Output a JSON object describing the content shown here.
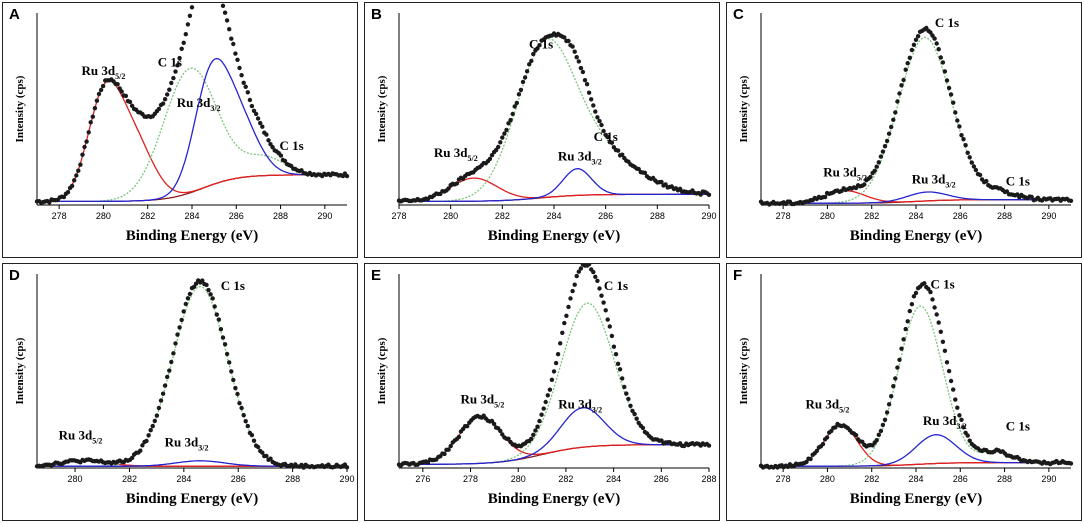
{
  "figure": {
    "colors": {
      "points": "#1a1a1a",
      "ru52": "#e02020",
      "ru32": "#2424d0",
      "c1s": "#7cc47c",
      "background": "#8b1a1a"
    }
  },
  "chart_data": [
    {
      "panel": "A",
      "type": "line",
      "xlabel": "Binding Energy (eV)",
      "ylabel": "Intensity (cps)",
      "xlim": [
        277,
        291
      ],
      "ylim": [
        0,
        1.08
      ],
      "xticks": [
        "278",
        "280",
        "282",
        "284",
        "286",
        "288",
        "290"
      ],
      "series": [
        {
          "name": "Ru 3d5/2",
          "role": "ru52",
          "centers": [
            280.0,
            281.3
          ],
          "heights": [
            0.53,
            0.35
          ],
          "widths": [
            0.75,
            0.9
          ]
        },
        {
          "name": "C 1s",
          "role": "c1s",
          "centers": [
            283.9,
            287.3
          ],
          "heights": [
            0.7,
            0.1
          ],
          "widths": [
            1.2,
            0.9
          ]
        },
        {
          "name": "Ru 3d3/2",
          "role": "ru32",
          "centers": [
            284.8,
            286.0
          ],
          "heights": [
            0.53,
            0.35
          ],
          "widths": [
            0.75,
            0.9
          ]
        }
      ],
      "background_curve": {
        "from": 0.02,
        "to": 0.17,
        "center": 284.5,
        "steepness": 0.8
      },
      "annotations": [
        {
          "text": "Ru 3d",
          "sub": "5/2",
          "x": 280.0,
          "y": 0.73
        },
        {
          "text": "C 1s",
          "x": 283.0,
          "y": 0.78
        },
        {
          "text": "Ru 3d",
          "sub": "3/2",
          "x": 284.3,
          "y": 0.55
        },
        {
          "text": "C 1s",
          "x": 288.5,
          "y": 0.31
        }
      ]
    },
    {
      "panel": "B",
      "type": "line",
      "xlabel": "Binding Energy (eV)",
      "ylabel": "Intensity (cps)",
      "xlim": [
        278,
        290
      ],
      "ylim": [
        0,
        1.08
      ],
      "xticks": [
        "278",
        "280",
        "282",
        "284",
        "286",
        "288",
        "290"
      ],
      "series": [
        {
          "name": "Ru 3d5/2",
          "role": "ru52",
          "centers": [
            280.9
          ],
          "heights": [
            0.13
          ],
          "widths": [
            0.9
          ]
        },
        {
          "name": "C 1s",
          "role": "c1s",
          "centers": [
            283.6,
            285.4
          ],
          "heights": [
            0.74,
            0.27
          ],
          "widths": [
            1.1,
            1.6
          ]
        },
        {
          "name": "Ru 3d3/2",
          "role": "ru32",
          "centers": [
            284.9
          ],
          "heights": [
            0.15
          ],
          "widths": [
            0.55
          ]
        }
      ],
      "background_curve": {
        "from": 0.02,
        "to": 0.06,
        "center": 283.5,
        "steepness": 0.8
      },
      "annotations": [
        {
          "text": "Ru 3d",
          "sub": "5/2",
          "x": 280.2,
          "y": 0.27
        },
        {
          "text": "C 1s",
          "x": 283.5,
          "y": 0.88
        },
        {
          "text": "C 1s",
          "x": 286.0,
          "y": 0.36
        },
        {
          "text": "Ru 3d",
          "sub": "3/2",
          "x": 285.0,
          "y": 0.25
        }
      ]
    },
    {
      "panel": "C",
      "type": "line",
      "xlabel": "Binding Energy (eV)",
      "ylabel": "Intensity (cps)",
      "xlim": [
        277,
        291
      ],
      "ylim": [
        0,
        1.08
      ],
      "xticks": [
        "278",
        "280",
        "282",
        "284",
        "286",
        "288",
        "290"
      ],
      "series": [
        {
          "name": "Ru 3d5/2",
          "role": "ru52",
          "centers": [
            280.8
          ],
          "heights": [
            0.07
          ],
          "widths": [
            0.9
          ]
        },
        {
          "name": "C 1s",
          "role": "c1s",
          "centers": [
            284.4,
            287.7
          ],
          "heights": [
            0.92,
            0.04
          ],
          "widths": [
            1.2,
            0.8
          ]
        },
        {
          "name": "Ru 3d3/2",
          "role": "ru32",
          "centers": [
            284.5
          ],
          "heights": [
            0.05
          ],
          "widths": [
            0.9
          ]
        }
      ],
      "background_curve": {
        "from": 0.01,
        "to": 0.03,
        "center": 284.0,
        "steepness": 0.8
      },
      "annotations": [
        {
          "text": "C 1s",
          "x": 285.4,
          "y": 1.0
        },
        {
          "text": "Ru 3d",
          "sub": "5/2",
          "x": 280.8,
          "y": 0.16
        },
        {
          "text": "Ru 3d",
          "sub": "3/2",
          "x": 284.8,
          "y": 0.12
        },
        {
          "text": "C 1s",
          "x": 288.6,
          "y": 0.11
        }
      ]
    },
    {
      "panel": "D",
      "type": "line",
      "xlabel": "Binding Energy (eV)",
      "ylabel": "Intensity (cps)",
      "xlim": [
        278.6,
        290
      ],
      "ylim": [
        0,
        1.08
      ],
      "xticks": [
        "280",
        "282",
        "284",
        "286",
        "288",
        "290"
      ],
      "series": [
        {
          "name": "Ru 3d5/2",
          "role": "ru52",
          "centers": [
            280.3
          ],
          "heights": [
            0.03
          ],
          "widths": [
            0.9
          ]
        },
        {
          "name": "C 1s",
          "role": "c1s",
          "centers": [
            284.6
          ],
          "heights": [
            1.0
          ],
          "widths": [
            1.0
          ]
        },
        {
          "name": "Ru 3d3/2",
          "role": "ru32",
          "centers": [
            284.6
          ],
          "heights": [
            0.03
          ],
          "widths": [
            0.9
          ]
        }
      ],
      "background_curve": {
        "from": 0.01,
        "to": 0.01,
        "center": 284.0,
        "steepness": 0.8
      },
      "annotations": [
        {
          "text": "C 1s",
          "x": 285.8,
          "y": 0.99
        },
        {
          "text": "Ru 3d",
          "sub": "5/2",
          "x": 280.2,
          "y": 0.16
        },
        {
          "text": "Ru 3d",
          "sub": "3/2",
          "x": 284.1,
          "y": 0.12
        }
      ]
    },
    {
      "panel": "E",
      "type": "line",
      "xlabel": "Binding Energy (eV)",
      "ylabel": "Intensity (cps)",
      "xlim": [
        275,
        288
      ],
      "ylim": [
        0,
        1.08
      ],
      "xticks": [
        "276",
        "278",
        "280",
        "282",
        "284",
        "286",
        "288"
      ],
      "series": [
        {
          "name": "Ru 3d5/2",
          "role": "ru52",
          "centers": [
            278.4
          ],
          "heights": [
            0.26
          ],
          "widths": [
            0.9
          ]
        },
        {
          "name": "C 1s",
          "role": "c1s",
          "centers": [
            282.9
          ],
          "heights": [
            0.8
          ],
          "widths": [
            1.1
          ]
        },
        {
          "name": "Ru 3d3/2",
          "role": "ru32",
          "centers": [
            282.7
          ],
          "heights": [
            0.22
          ],
          "widths": [
            0.9
          ]
        }
      ],
      "background_curve": {
        "from": 0.02,
        "to": 0.13,
        "center": 281.0,
        "steepness": 0.9
      },
      "annotations": [
        {
          "text": "C 1s",
          "x": 284.1,
          "y": 0.99
        },
        {
          "text": "Ru 3d",
          "sub": "5/2",
          "x": 278.5,
          "y": 0.36
        },
        {
          "text": "Ru 3d",
          "sub": "3/2",
          "x": 282.6,
          "y": 0.33
        }
      ]
    },
    {
      "panel": "F",
      "type": "line",
      "xlabel": "Binding Energy (eV)",
      "ylabel": "Intensity (cps)",
      "xlim": [
        277,
        291
      ],
      "ylim": [
        0,
        1.08
      ],
      "xticks": [
        "278",
        "280",
        "282",
        "284",
        "286",
        "288",
        "290"
      ],
      "series": [
        {
          "name": "Ru 3d5/2",
          "role": "ru52",
          "centers": [
            280.6
          ],
          "heights": [
            0.23
          ],
          "widths": [
            0.75
          ]
        },
        {
          "name": "C 1s",
          "role": "c1s",
          "centers": [
            284.2,
            287.6
          ],
          "heights": [
            0.88,
            0.06
          ],
          "widths": [
            1.0,
            0.7
          ]
        },
        {
          "name": "Ru 3d3/2",
          "role": "ru32",
          "centers": [
            284.9
          ],
          "heights": [
            0.16
          ],
          "widths": [
            0.9
          ]
        }
      ],
      "background_curve": {
        "from": 0.01,
        "to": 0.03,
        "center": 284.0,
        "steepness": 0.8
      },
      "annotations": [
        {
          "text": "C 1s",
          "x": 285.2,
          "y": 1.0
        },
        {
          "text": "Ru 3d",
          "sub": "5/2",
          "x": 280.0,
          "y": 0.33
        },
        {
          "text": "Ru 3d",
          "sub": "3/2",
          "x": 285.3,
          "y": 0.24
        },
        {
          "text": "C 1s",
          "x": 288.6,
          "y": 0.21
        }
      ]
    }
  ]
}
